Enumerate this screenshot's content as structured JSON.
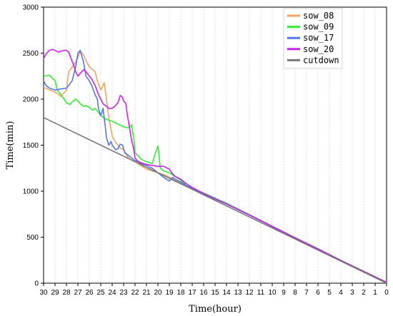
{
  "chart_data": {
    "type": "line",
    "xlabel": "Time(hour)",
    "ylabel": "Time(min)",
    "xlim": [
      30,
      0
    ],
    "ylim": [
      0,
      3000
    ],
    "x_ticks": [
      30,
      29,
      28,
      27,
      26,
      25,
      24,
      23,
      22,
      21,
      20,
      19,
      18,
      17,
      16,
      15,
      14,
      13,
      12,
      11,
      10,
      9,
      8,
      7,
      6,
      5,
      4,
      3,
      2,
      1,
      0
    ],
    "y_ticks": [
      0,
      500,
      1000,
      1500,
      2000,
      2500,
      3000
    ],
    "grid": "vertical dotted",
    "legend": "top-right",
    "series": [
      {
        "name": "sow_08",
        "color": "#f4a460",
        "points": [
          [
            30,
            2130
          ],
          [
            29.5,
            2100
          ],
          [
            29,
            2080
          ],
          [
            28.5,
            2030
          ],
          [
            28,
            2100
          ],
          [
            27.8,
            2300
          ],
          [
            27.5,
            2350
          ],
          [
            27.2,
            2400
          ],
          [
            27,
            2450
          ],
          [
            26.8,
            2520
          ],
          [
            26.5,
            2480
          ],
          [
            26.3,
            2420
          ],
          [
            26,
            2350
          ],
          [
            25.7,
            2320
          ],
          [
            25.5,
            2300
          ],
          [
            25.3,
            2200
          ],
          [
            25,
            2100
          ],
          [
            24.8,
            2150
          ],
          [
            24.7,
            2180
          ],
          [
            24.5,
            2000
          ],
          [
            24.3,
            1800
          ],
          [
            24,
            1600
          ],
          [
            23.8,
            1550
          ],
          [
            23.5,
            1500
          ],
          [
            23.3,
            1470
          ],
          [
            23,
            1450
          ],
          [
            22.8,
            1400
          ],
          [
            22.5,
            1350
          ],
          [
            22,
            1320
          ],
          [
            21.5,
            1280
          ],
          [
            21,
            1240
          ],
          [
            20.5,
            1220
          ],
          [
            20,
            1200
          ],
          [
            19.5,
            1180
          ],
          [
            19.3,
            1170
          ],
          [
            18.5,
            1120
          ],
          [
            17.5,
            1060
          ],
          [
            17,
            1030
          ],
          [
            16,
            970
          ],
          [
            14,
            860
          ],
          [
            12,
            740
          ],
          [
            10,
            615
          ],
          [
            8,
            490
          ],
          [
            6,
            370
          ],
          [
            4,
            245
          ],
          [
            2,
            125
          ],
          [
            0,
            10
          ]
        ]
      },
      {
        "name": "sow_09",
        "color": "#33ee33",
        "points": [
          [
            30,
            2250
          ],
          [
            29.5,
            2260
          ],
          [
            29,
            2200
          ],
          [
            28.8,
            2100
          ],
          [
            28.5,
            2050
          ],
          [
            28.2,
            2000
          ],
          [
            28,
            1960
          ],
          [
            27.7,
            1940
          ],
          [
            27.5,
            1970
          ],
          [
            27.2,
            2000
          ],
          [
            27,
            1980
          ],
          [
            26.8,
            1950
          ],
          [
            26.5,
            1920
          ],
          [
            26.3,
            1930
          ],
          [
            26,
            1910
          ],
          [
            25.7,
            1880
          ],
          [
            25.5,
            1900
          ],
          [
            25.3,
            1870
          ],
          [
            25,
            1820
          ],
          [
            24.5,
            1780
          ],
          [
            24,
            1760
          ],
          [
            23.5,
            1730
          ],
          [
            23,
            1700
          ],
          [
            22.7,
            1690
          ],
          [
            22.5,
            1690
          ],
          [
            22.3,
            1720
          ],
          [
            22.1,
            1560
          ],
          [
            22,
            1420
          ],
          [
            21.5,
            1350
          ],
          [
            21,
            1320
          ],
          [
            20.5,
            1300
          ],
          [
            20.2,
            1420
          ],
          [
            20,
            1490
          ],
          [
            19.9,
            1400
          ],
          [
            19.8,
            1250
          ],
          [
            19.5,
            1220
          ],
          [
            19,
            1200
          ],
          [
            18.5,
            1160
          ],
          [
            18,
            1120
          ],
          [
            17.5,
            1060
          ],
          [
            17,
            1030
          ],
          [
            16,
            980
          ],
          [
            14,
            870
          ],
          [
            12,
            745
          ],
          [
            10,
            620
          ],
          [
            8,
            495
          ],
          [
            6,
            375
          ],
          [
            4,
            250
          ],
          [
            2,
            130
          ],
          [
            0,
            10
          ]
        ]
      },
      {
        "name": "sow_17",
        "color": "#5577ee",
        "points": [
          [
            30,
            2200
          ],
          [
            29.8,
            2150
          ],
          [
            29.5,
            2120
          ],
          [
            29,
            2100
          ],
          [
            28.5,
            2110
          ],
          [
            28,
            2120
          ],
          [
            27.8,
            2150
          ],
          [
            27.5,
            2200
          ],
          [
            27.2,
            2350
          ],
          [
            27,
            2500
          ],
          [
            26.8,
            2530
          ],
          [
            26.5,
            2400
          ],
          [
            26.3,
            2250
          ],
          [
            26,
            2200
          ],
          [
            25.8,
            2150
          ],
          [
            25.5,
            2050
          ],
          [
            25.3,
            2000
          ],
          [
            25.2,
            1900
          ],
          [
            25,
            1820
          ],
          [
            24.8,
            1900
          ],
          [
            24.6,
            1700
          ],
          [
            24.5,
            1580
          ],
          [
            24.3,
            1500
          ],
          [
            24.1,
            1540
          ],
          [
            24,
            1500
          ],
          [
            23.7,
            1450
          ],
          [
            23.5,
            1460
          ],
          [
            23.3,
            1510
          ],
          [
            23.1,
            1500
          ],
          [
            22.9,
            1420
          ],
          [
            22.7,
            1400
          ],
          [
            22.5,
            1380
          ],
          [
            22.2,
            1350
          ],
          [
            22,
            1330
          ],
          [
            21.7,
            1320
          ],
          [
            21.5,
            1300
          ],
          [
            21,
            1280
          ],
          [
            20.5,
            1250
          ],
          [
            20,
            1200
          ],
          [
            19.5,
            1150
          ],
          [
            19,
            1110
          ],
          [
            18.7,
            1150
          ],
          [
            18.5,
            1130
          ],
          [
            18,
            1100
          ],
          [
            17.5,
            1060
          ],
          [
            17,
            1030
          ],
          [
            16,
            970
          ],
          [
            14,
            860
          ],
          [
            12,
            740
          ],
          [
            10,
            615
          ],
          [
            8,
            490
          ],
          [
            6,
            370
          ],
          [
            4,
            245
          ],
          [
            2,
            125
          ],
          [
            0,
            10
          ]
        ]
      },
      {
        "name": "sow_20",
        "color": "#cc22ee",
        "points": [
          [
            30,
            2440
          ],
          [
            29.8,
            2490
          ],
          [
            29.5,
            2530
          ],
          [
            29.2,
            2540
          ],
          [
            29,
            2530
          ],
          [
            28.7,
            2510
          ],
          [
            28.5,
            2520
          ],
          [
            28.2,
            2530
          ],
          [
            28,
            2530
          ],
          [
            27.8,
            2510
          ],
          [
            27.6,
            2440
          ],
          [
            27.4,
            2380
          ],
          [
            27.2,
            2300
          ],
          [
            27,
            2250
          ],
          [
            26.8,
            2280
          ],
          [
            26.5,
            2320
          ],
          [
            26.3,
            2300
          ],
          [
            26,
            2250
          ],
          [
            25.8,
            2220
          ],
          [
            25.5,
            2150
          ],
          [
            25.2,
            2050
          ],
          [
            25,
            2000
          ],
          [
            24.8,
            1950
          ],
          [
            24.5,
            1920
          ],
          [
            24.3,
            1900
          ],
          [
            24,
            1900
          ],
          [
            23.8,
            1920
          ],
          [
            23.5,
            1960
          ],
          [
            23.3,
            2040
          ],
          [
            23.1,
            2020
          ],
          [
            23,
            1980
          ],
          [
            22.8,
            1950
          ],
          [
            22.7,
            1850
          ],
          [
            22.5,
            1700
          ],
          [
            22.3,
            1550
          ],
          [
            22.1,
            1450
          ],
          [
            22,
            1360
          ],
          [
            21.8,
            1330
          ],
          [
            21.5,
            1310
          ],
          [
            21,
            1290
          ],
          [
            20.5,
            1280
          ],
          [
            20,
            1270
          ],
          [
            19.5,
            1270
          ],
          [
            19,
            1240
          ],
          [
            18.8,
            1200
          ],
          [
            18.5,
            1160
          ],
          [
            18,
            1130
          ],
          [
            17.5,
            1080
          ],
          [
            17,
            1040
          ],
          [
            16,
            975
          ],
          [
            14,
            862
          ],
          [
            12,
            742
          ],
          [
            10,
            617
          ],
          [
            8,
            492
          ],
          [
            6,
            372
          ],
          [
            4,
            247
          ],
          [
            2,
            127
          ],
          [
            0,
            10
          ]
        ]
      },
      {
        "name": "cutdown",
        "color": "#777777",
        "points": [
          [
            30,
            1800
          ],
          [
            0,
            0
          ]
        ]
      }
    ]
  }
}
